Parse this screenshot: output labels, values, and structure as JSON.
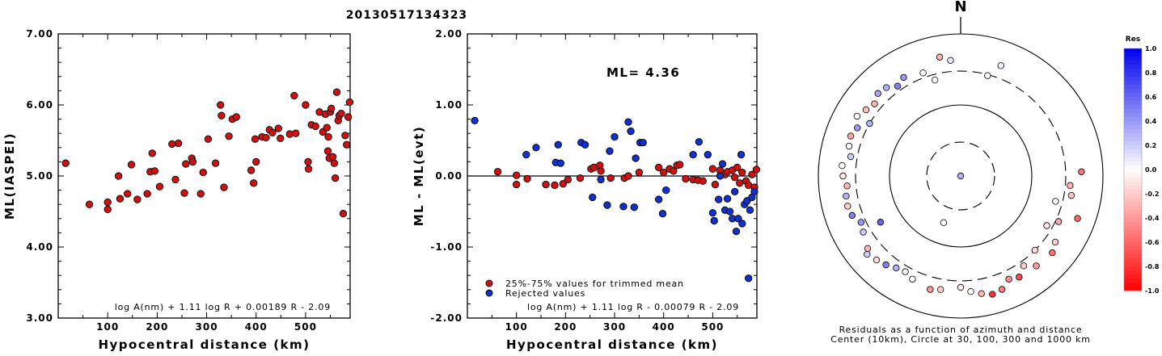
{
  "title": "20130517134323",
  "colors": {
    "accepted": "#d11010",
    "rejected": "#1030d0"
  },
  "chart_data": [
    {
      "type": "scatter",
      "xlabel": "Hypocentral distance (km)",
      "ylabel": "ML(IASPEI)",
      "xlim": [
        0,
        590
      ],
      "ylim": [
        3.0,
        7.0
      ],
      "xticks": [
        100,
        200,
        300,
        400,
        500
      ],
      "yticks": [
        3.0,
        4.0,
        5.0,
        6.0,
        7.0
      ],
      "xtick_labels": [
        "100",
        "200",
        "300",
        "400",
        "500"
      ],
      "ytick_labels": [
        "3.00",
        "4.00",
        "5.00",
        "6.00",
        "7.00"
      ],
      "formula": "log A(nm) + 1.11 log R + 0.00189 R - 2.09",
      "points": [
        [
          15,
          5.18
        ],
        [
          63,
          4.6
        ],
        [
          100,
          4.53
        ],
        [
          100,
          4.63
        ],
        [
          122,
          5.0
        ],
        [
          125,
          4.68
        ],
        [
          140,
          4.75
        ],
        [
          148,
          5.16
        ],
        [
          160,
          4.67
        ],
        [
          180,
          4.75
        ],
        [
          186,
          5.06
        ],
        [
          190,
          5.32
        ],
        [
          195,
          5.07
        ],
        [
          205,
          4.85
        ],
        [
          230,
          5.45
        ],
        [
          237,
          4.95
        ],
        [
          243,
          5.46
        ],
        [
          255,
          4.76
        ],
        [
          258,
          5.17
        ],
        [
          270,
          5.25
        ],
        [
          272,
          5.2
        ],
        [
          288,
          4.75
        ],
        [
          293,
          5.05
        ],
        [
          303,
          5.52
        ],
        [
          318,
          5.18
        ],
        [
          328,
          6.0
        ],
        [
          330,
          5.85
        ],
        [
          335,
          4.84
        ],
        [
          345,
          5.56
        ],
        [
          352,
          5.8
        ],
        [
          360,
          5.83
        ],
        [
          390,
          5.08
        ],
        [
          395,
          4.9
        ],
        [
          398,
          5.52
        ],
        [
          400,
          5.2
        ],
        [
          412,
          5.55
        ],
        [
          420,
          5.54
        ],
        [
          427,
          5.65
        ],
        [
          433,
          5.61
        ],
        [
          445,
          5.67
        ],
        [
          449,
          5.53
        ],
        [
          468,
          5.59
        ],
        [
          477,
          6.13
        ],
        [
          480,
          5.6
        ],
        [
          500,
          6.0
        ],
        [
          505,
          5.2
        ],
        [
          506,
          5.1
        ],
        [
          512,
          5.72
        ],
        [
          520,
          5.7
        ],
        [
          528,
          5.9
        ],
        [
          535,
          5.62
        ],
        [
          540,
          5.87
        ],
        [
          543,
          5.68
        ],
        [
          545,
          5.35
        ],
        [
          546,
          5.55
        ],
        [
          548,
          5.25
        ],
        [
          550,
          5.9
        ],
        [
          552,
          5.95
        ],
        [
          555,
          5.27
        ],
        [
          558,
          5.18
        ],
        [
          560,
          4.97
        ],
        [
          563,
          6.18
        ],
        [
          566,
          5.78
        ],
        [
          568,
          5.85
        ],
        [
          572,
          5.88
        ],
        [
          576,
          4.47
        ],
        [
          580,
          5.57
        ],
        [
          583,
          5.44
        ],
        [
          586,
          5.83
        ],
        [
          589,
          6.04
        ]
      ]
    },
    {
      "type": "scatter",
      "xlabel": "Hypocentral distance (km)",
      "ylabel": "ML - ML(evt)",
      "xlim": [
        0,
        590
      ],
      "ylim": [
        -2.0,
        2.0
      ],
      "xticks": [
        100,
        200,
        300,
        400,
        500
      ],
      "yticks": [
        -2.0,
        -1.0,
        0.0,
        1.0,
        2.0
      ],
      "xtick_labels": [
        "100",
        "200",
        "300",
        "400",
        "500"
      ],
      "ytick_labels": [
        "-2.00",
        "-1.00",
        "0.00",
        "1.00",
        "2.00"
      ],
      "annotation": "ML= 4.36",
      "formula": "log A(nm) + 1.11 log R - 0.00079 R - 2.09",
      "legend": [
        {
          "label": "25%-75% values for trimmed mean",
          "color": "#d11010"
        },
        {
          "label": "Rejected values",
          "color": "#1030d0"
        }
      ],
      "series": [
        {
          "name": "25%-75% values for trimmed mean",
          "points": [
            [
              62,
              0.06
            ],
            [
              100,
              0.01
            ],
            [
              100,
              -0.12
            ],
            [
              122,
              -0.04
            ],
            [
              160,
              -0.12
            ],
            [
              178,
              -0.13
            ],
            [
              195,
              -0.11
            ],
            [
              205,
              -0.05
            ],
            [
              230,
              -0.03
            ],
            [
              252,
              0.1
            ],
            [
              258,
              0.12
            ],
            [
              270,
              0.15
            ],
            [
              272,
              0.07
            ],
            [
              292,
              -0.03
            ],
            [
              320,
              -0.03
            ],
            [
              328,
              0.0
            ],
            [
              350,
              0.05
            ],
            [
              390,
              0.12
            ],
            [
              400,
              0.05
            ],
            [
              412,
              0.1
            ],
            [
              420,
              0.07
            ],
            [
              427,
              0.15
            ],
            [
              433,
              0.16
            ],
            [
              445,
              -0.04
            ],
            [
              460,
              -0.05
            ],
            [
              470,
              -0.06
            ],
            [
              480,
              -0.07
            ],
            [
              500,
              0.1
            ],
            [
              505,
              -0.12
            ],
            [
              515,
              0.08
            ],
            [
              525,
              0.02
            ],
            [
              530,
              0.06
            ],
            [
              540,
              0.08
            ],
            [
              545,
              -0.02
            ],
            [
              550,
              0.12
            ],
            [
              555,
              -0.1
            ],
            [
              560,
              0.05
            ],
            [
              568,
              -0.07
            ],
            [
              573,
              -0.13
            ],
            [
              580,
              0.02
            ],
            [
              585,
              -0.16
            ],
            [
              589,
              0.09
            ]
          ]
        },
        {
          "name": "Rejected values",
          "points": [
            [
              15,
              0.78
            ],
            [
              120,
              0.3
            ],
            [
              140,
              0.4
            ],
            [
              180,
              0.19
            ],
            [
              185,
              0.44
            ],
            [
              190,
              0.18
            ],
            [
              232,
              0.47
            ],
            [
              240,
              0.44
            ],
            [
              255,
              -0.3
            ],
            [
              272,
              -0.05
            ],
            [
              285,
              -0.41
            ],
            [
              290,
              0.35
            ],
            [
              300,
              0.55
            ],
            [
              318,
              -0.43
            ],
            [
              328,
              0.76
            ],
            [
              333,
              0.63
            ],
            [
              340,
              -0.44
            ],
            [
              343,
              0.25
            ],
            [
              352,
              0.47
            ],
            [
              358,
              0.47
            ],
            [
              390,
              -0.33
            ],
            [
              398,
              -0.53
            ],
            [
              405,
              -0.2
            ],
            [
              460,
              0.3
            ],
            [
              472,
              0.48
            ],
            [
              490,
              0.3
            ],
            [
              500,
              -0.52
            ],
            [
              503,
              -0.63
            ],
            [
              512,
              -0.33
            ],
            [
              515,
              0.0
            ],
            [
              520,
              0.17
            ],
            [
              525,
              -0.48
            ],
            [
              530,
              -0.32
            ],
            [
              535,
              -0.5
            ],
            [
              540,
              -0.6
            ],
            [
              545,
              -0.22
            ],
            [
              548,
              -0.78
            ],
            [
              552,
              -0.6
            ],
            [
              558,
              0.3
            ],
            [
              560,
              -0.67
            ],
            [
              565,
              -0.4
            ],
            [
              570,
              -0.35
            ],
            [
              573,
              -1.44
            ],
            [
              576,
              -0.48
            ],
            [
              580,
              -0.3
            ],
            [
              585,
              -0.22
            ]
          ]
        }
      ]
    },
    {
      "type": "scatter",
      "subtype": "polar",
      "north_label": "N",
      "caption_line1": "Residuals as a function of azimuth and distance",
      "caption_line2": "Center (10km), Circle at 30, 100, 300 and 1000 km",
      "rings_km": [
        30,
        100,
        300,
        1000
      ],
      "colorbar": {
        "title": "Res",
        "ticks": [
          1.0,
          0.8,
          0.6,
          0.4,
          0.2,
          0.0,
          -0.2,
          -0.4,
          -0.6,
          -0.8,
          -1.0
        ],
        "tick_labels": [
          "1.0",
          "0.8",
          "0.6",
          "0.4",
          "0.2",
          "0.0",
          "-0.2",
          "-0.4",
          "-0.6",
          "-0.8",
          "-1.0"
        ]
      },
      "points": [
        [
          20,
          450,
          0.05
        ],
        [
          15,
          290,
          -0.05
        ],
        [
          120,
          250,
          -0.1
        ],
        [
          135,
          300,
          -0.15
        ],
        [
          145,
          350,
          -0.2
        ],
        [
          160,
          500,
          -0.5
        ],
        [
          330,
          400,
          0.4
        ],
        [
          310,
          380,
          -0.3
        ],
        [
          300,
          300,
          0.3
        ],
        [
          240,
          200,
          0.6
        ],
        [
          200,
          50,
          0.0
        ],
        [
          45,
          10,
          0.3
        ],
        [
          110,
          560,
          -0.6
        ],
        [
          130,
          480,
          -0.55
        ],
        [
          140,
          450,
          -0.4
        ],
        [
          150,
          440,
          -0.7
        ],
        [
          155,
          400,
          -0.45
        ],
        [
          165,
          530,
          -0.8
        ],
        [
          170,
          480,
          -0.3
        ],
        [
          175,
          430,
          0.0
        ],
        [
          125,
          420,
          -0.2
        ],
        [
          115,
          330,
          -0.35
        ],
        [
          105,
          240,
          0.0
        ],
        [
          88,
          500,
          -0.55
        ],
        [
          95,
          350,
          -0.3
        ],
        [
          100,
          380,
          -0.25
        ],
        [
          180,
          370,
          -0.1
        ],
        [
          190,
          420,
          -0.2
        ],
        [
          195,
          450,
          -0.4
        ],
        [
          205,
          400,
          0.0
        ],
        [
          210,
          360,
          0.05
        ],
        [
          215,
          380,
          0.3
        ],
        [
          220,
          430,
          0.5
        ],
        [
          225,
          470,
          -0.15
        ],
        [
          230,
          520,
          0.2
        ],
        [
          232,
          455,
          -0.3
        ],
        [
          240,
          380,
          0.2
        ],
        [
          245,
          350,
          0.4
        ],
        [
          250,
          420,
          0.5
        ],
        [
          255,
          440,
          -0.2
        ],
        [
          260,
          430,
          0.3
        ],
        [
          265,
          400,
          -0.3
        ],
        [
          270,
          450,
          -0.1
        ],
        [
          275,
          470,
          0.0
        ],
        [
          280,
          370,
          0.2
        ],
        [
          285,
          420,
          0.0
        ],
        [
          290,
          440,
          -0.35
        ],
        [
          295,
          400,
          0.4
        ],
        [
          305,
          420,
          -0.25
        ],
        [
          315,
          440,
          0.35
        ],
        [
          320,
          420,
          0.3
        ],
        [
          325,
          350,
          0.5
        ],
        [
          300,
          480,
          0.0
        ],
        [
          340,
          350,
          0.0
        ],
        [
          345,
          250,
          0.0
        ],
        [
          350,
          500,
          -0.3
        ],
        [
          355,
          430,
          0.1
        ]
      ]
    }
  ]
}
